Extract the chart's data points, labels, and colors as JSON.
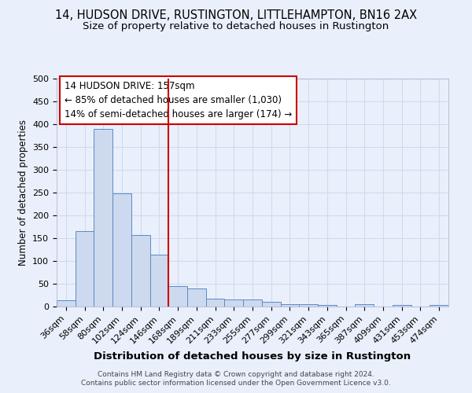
{
  "title": "14, HUDSON DRIVE, RUSTINGTON, LITTLEHAMPTON, BN16 2AX",
  "subtitle": "Size of property relative to detached houses in Rustington",
  "xlabel": "Distribution of detached houses by size in Rustington",
  "ylabel": "Number of detached properties",
  "categories": [
    "36sqm",
    "58sqm",
    "80sqm",
    "102sqm",
    "124sqm",
    "146sqm",
    "168sqm",
    "189sqm",
    "211sqm",
    "233sqm",
    "255sqm",
    "277sqm",
    "299sqm",
    "321sqm",
    "343sqm",
    "365sqm",
    "387sqm",
    "409sqm",
    "431sqm",
    "453sqm",
    "474sqm"
  ],
  "values": [
    13,
    165,
    390,
    248,
    157,
    113,
    44,
    40,
    18,
    15,
    15,
    10,
    6,
    5,
    3,
    0,
    6,
    0,
    4,
    0,
    4
  ],
  "bar_color": "#cdd9ee",
  "bar_edge_color": "#5b8ac5",
  "background_color": "#eaf0fb",
  "grid_color": "#d0daf0",
  "vline_x": 5.5,
  "vline_color": "#cc0000",
  "annotation_line1": "14 HUDSON DRIVE: 157sqm",
  "annotation_line2": "← 85% of detached houses are smaller (1,030)",
  "annotation_line3": "14% of semi-detached houses are larger (174) →",
  "annotation_box_color": "#ffffff",
  "annotation_box_edge_color": "#cc0000",
  "footer_text": "Contains HM Land Registry data © Crown copyright and database right 2024.\nContains public sector information licensed under the Open Government Licence v3.0.",
  "ylim": [
    0,
    500
  ],
  "yticks": [
    0,
    50,
    100,
    150,
    200,
    250,
    300,
    350,
    400,
    450,
    500
  ],
  "title_fontsize": 10.5,
  "subtitle_fontsize": 9.5,
  "xlabel_fontsize": 9.5,
  "ylabel_fontsize": 8.5,
  "annotation_fontsize": 8.5,
  "tick_fontsize": 8,
  "footer_fontsize": 6.5
}
